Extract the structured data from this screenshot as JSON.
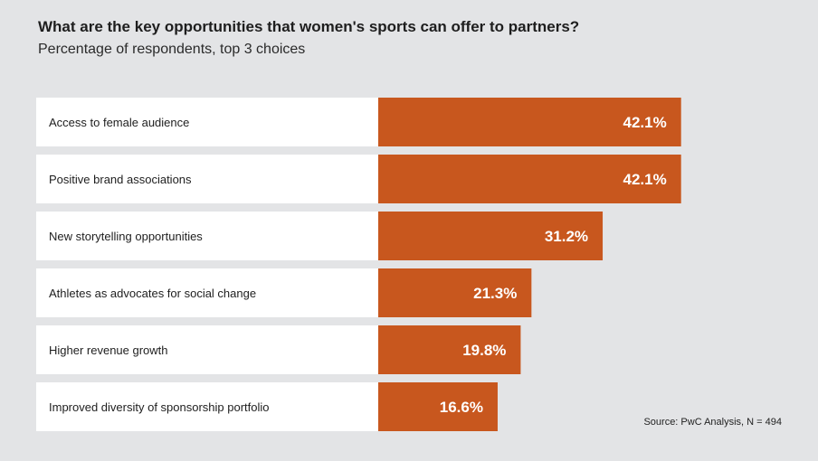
{
  "chart_data": {
    "type": "bar",
    "orientation": "horizontal",
    "title": "What are the key opportunities that women's sports can offer to partners?",
    "subtitle": "Percentage of respondents, top 3 choices",
    "categories": [
      "Access to female audience",
      "Positive brand associations",
      "New storytelling opportunities",
      "Athletes as advocates for social change",
      "Higher revenue growth",
      "Improved diversity of sponsorship portfolio"
    ],
    "values": [
      42.1,
      42.1,
      31.2,
      21.3,
      19.8,
      16.6
    ],
    "value_labels": [
      "42.1%",
      "42.1%",
      "31.2%",
      "21.3%",
      "19.8%",
      "16.6%"
    ],
    "unit": "%",
    "bar_color": "#c8571e",
    "label_row_color": "#ffffff",
    "background_color": "#e3e4e6",
    "source": "Source: PwC Analysis, N = 494"
  }
}
